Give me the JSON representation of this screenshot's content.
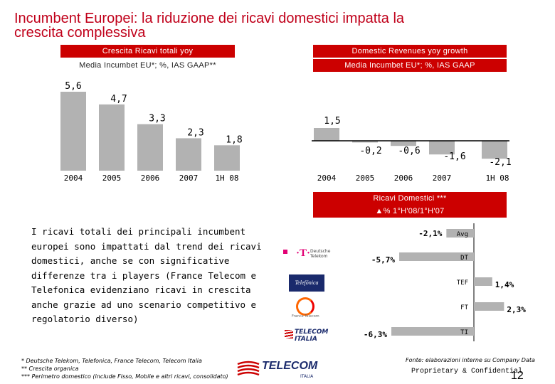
{
  "title_line1": "Incumbent Europei: la riduzione dei ricavi domestici impatta la",
  "title_line2": "crescita complessiva",
  "colors": {
    "accent": "#cc0000",
    "bar": "#b2b2b2",
    "negbar": "#000000",
    "title": "#c0001a"
  },
  "left_panel": {
    "header1": "Crescita Ricavi totali yoy",
    "header2": "Media Incumbet EU*; %, IAS GAAP**"
  },
  "right_panel": {
    "header1": "Domestic Revenues yoy growth",
    "header2": "Media Incumbet EU*; %, IAS GAAP"
  },
  "chart_data": [
    {
      "type": "bar",
      "title": "Crescita Ricavi totali yoy",
      "categories": [
        "2004",
        "2005",
        "2006",
        "2007",
        "1H 08"
      ],
      "values": [
        5.6,
        4.7,
        3.3,
        2.3,
        1.8
      ],
      "labels": [
        "5,6",
        "4,7",
        "3,3",
        "2,3",
        "1,8"
      ],
      "ylim": [
        0,
        6
      ]
    },
    {
      "type": "bar",
      "title": "Domestic Revenues yoy growth",
      "categories": [
        "2004",
        "2005",
        "2006",
        "2007",
        "1H 08"
      ],
      "values": [
        1.5,
        -0.2,
        -0.6,
        -1.6,
        -2.1
      ],
      "labels": [
        "1,5",
        "-0,2",
        "-0,6",
        "-1,6",
        "-2,1"
      ],
      "ylim": [
        -2.5,
        2
      ]
    },
    {
      "type": "bar",
      "orientation": "horizontal",
      "title": "Ricavi Domestici *** Δ% 1°H'08/1°H'07",
      "categories": [
        "Avg",
        "DT",
        "TEF",
        "FT",
        "TI"
      ],
      "values": [
        -2.1,
        -5.7,
        1.4,
        2.3,
        -6.3
      ],
      "labels": [
        "-2,1%",
        "-5,7%",
        "1,4%",
        "2,3%",
        "-6,3%"
      ]
    }
  ],
  "hbar_header1": "Ricavi Domestici ***",
  "hbar_header2": "% 1°H'08/1°H'07",
  "logos": {
    "dt": "Deutsche Telekom",
    "tef": "Telefónica",
    "ft": "France Telecom",
    "ti": "TELECOM ITALIA"
  },
  "body_text": "I ricavi totali dei principali incumbent europei sono impattati dal trend dei ricavi domestici, anche se con significative differenze tra i players (France Telecom e Telefonica evidenziano ricavi in crescita anche grazie ad uno scenario competitivo e regolatorio diverso)",
  "footnotes": [
    "* Deutsche Telekom, Telefonica, France Telecom, Telecom Italia",
    "** Crescita organica",
    "*** Perimetro domestico (include Fisso, Mobile e altri ricavi, consolidato)"
  ],
  "source": "Fonte: elaborazioni interne su Company Data",
  "confidential": "Proprietary & Confidential",
  "page_number": "12",
  "telecom_logo_text": "TELECOM",
  "telecom_logo_sub": "ITALIA"
}
